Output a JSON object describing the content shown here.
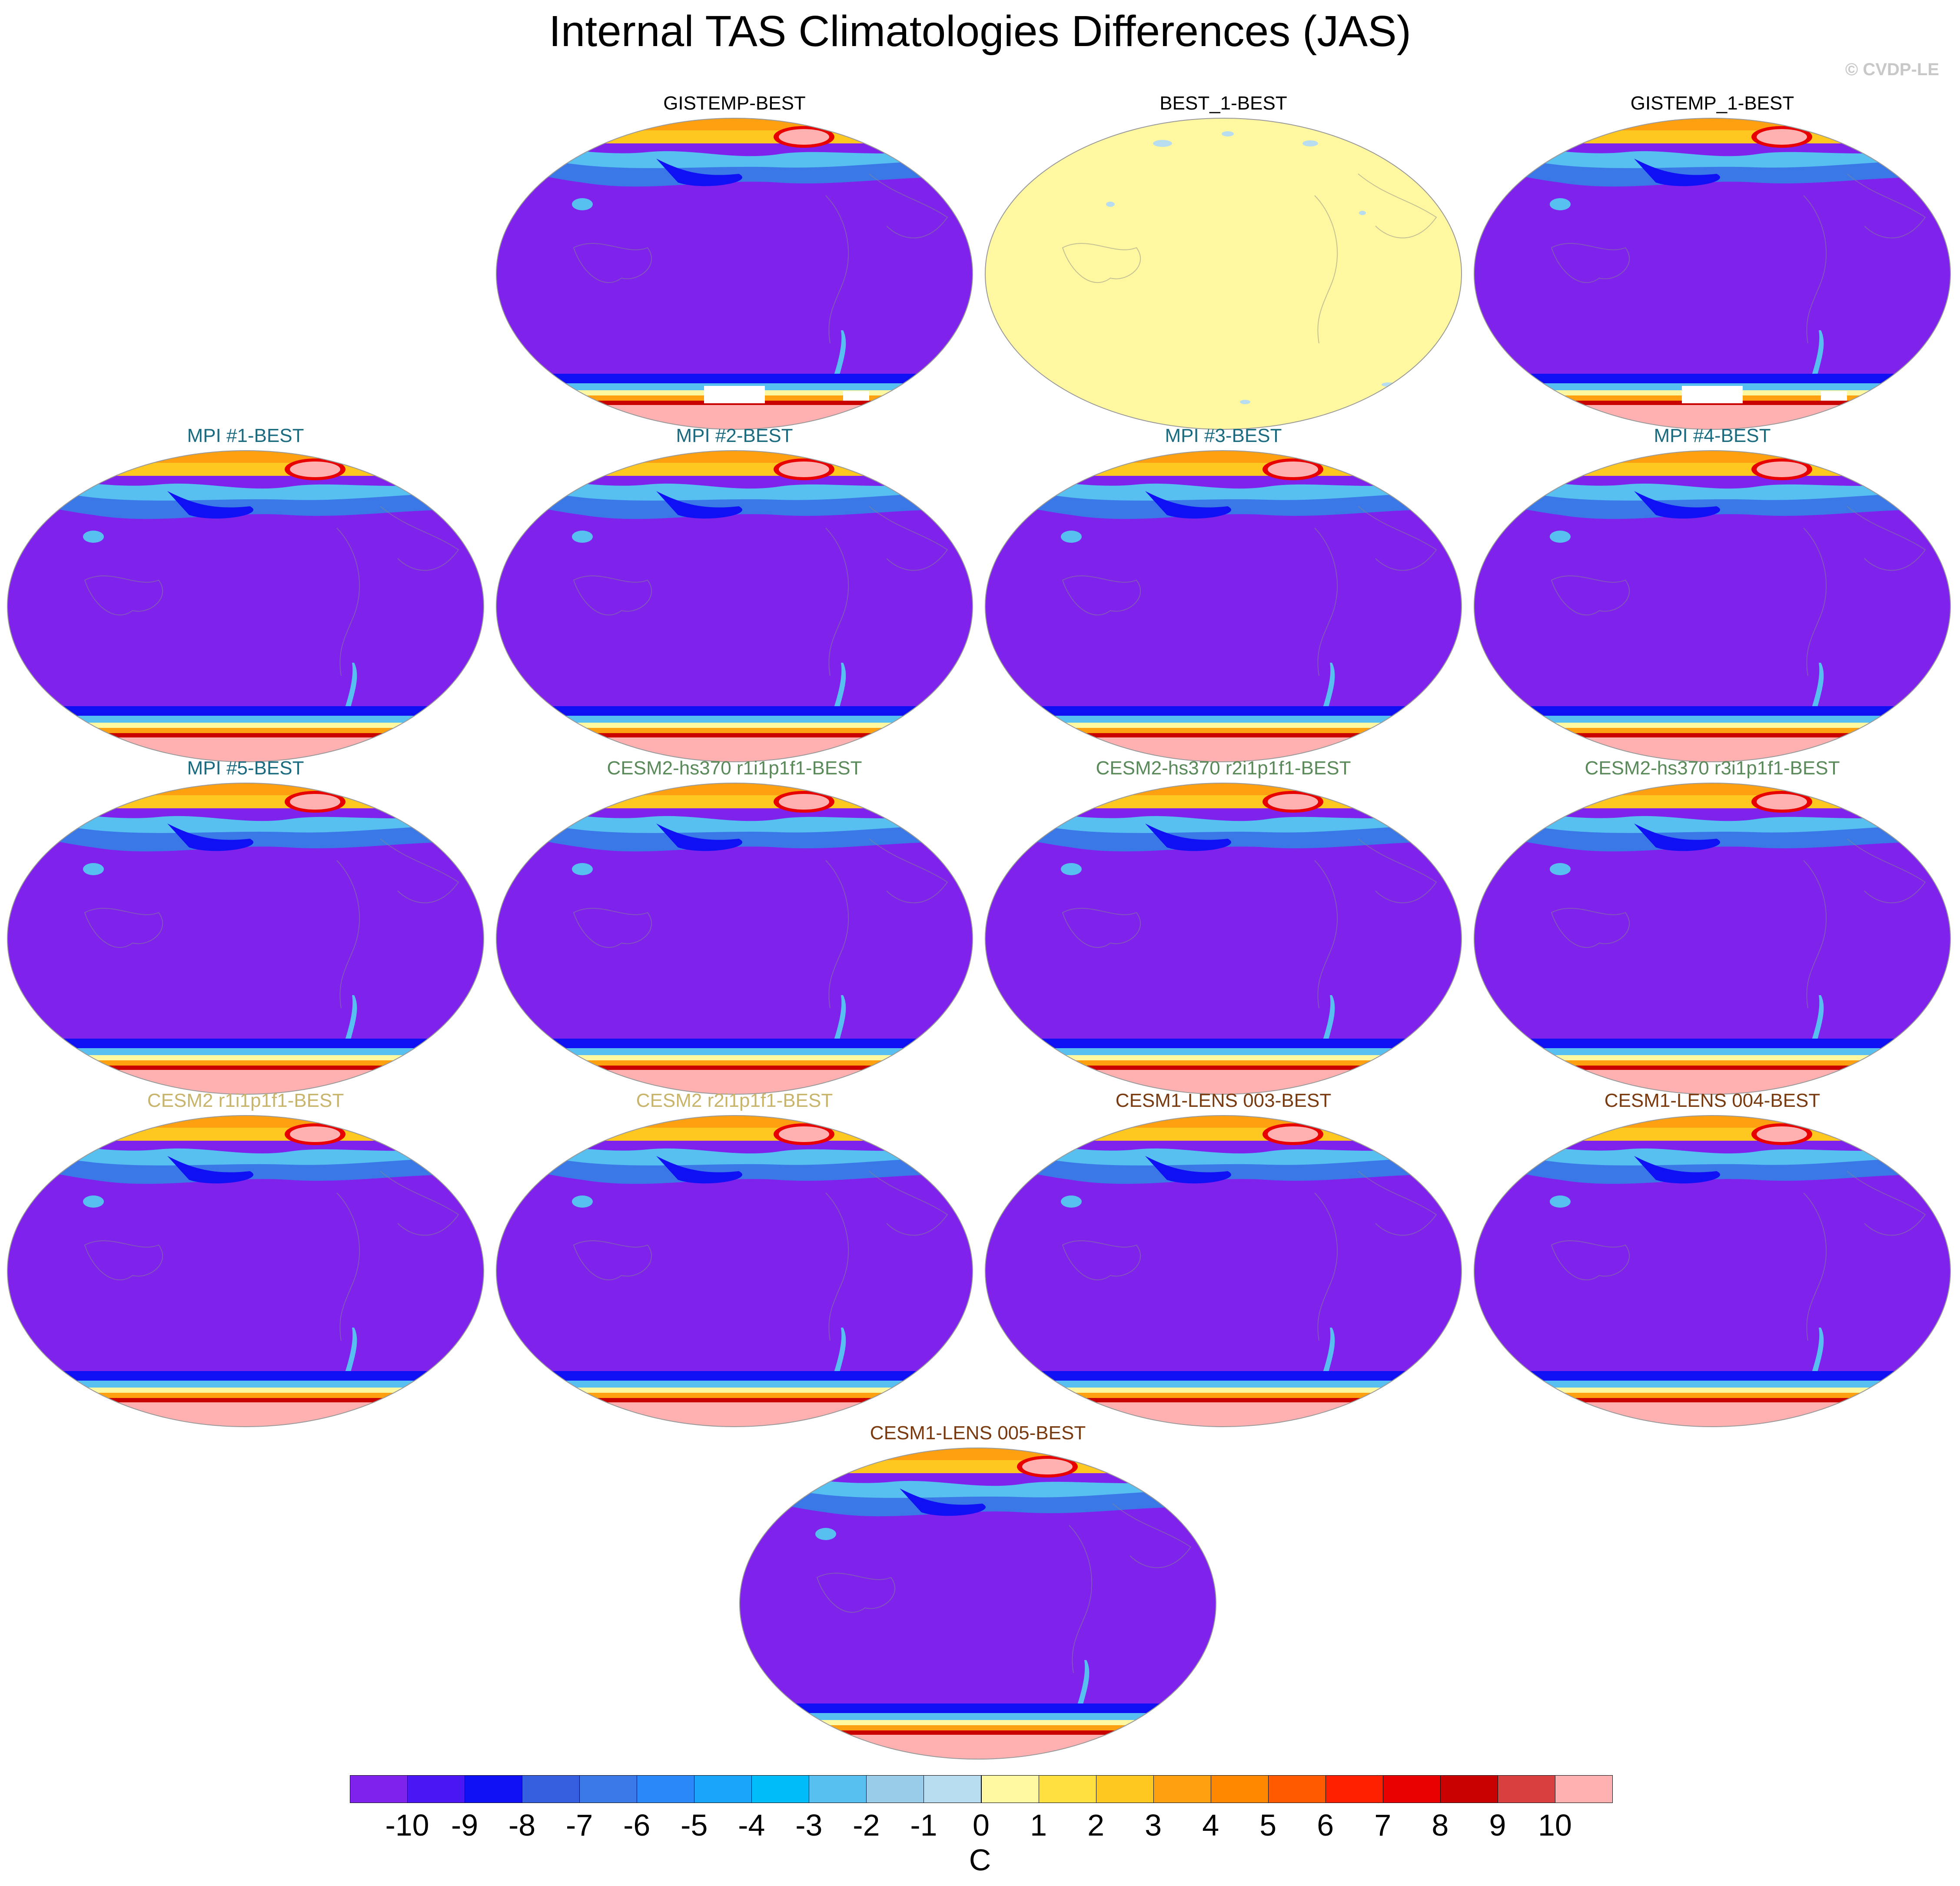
{
  "title": "Internal TAS Climatologies Differences (JAS)",
  "watermark": "© CVDP-LE",
  "panels": [
    {
      "title": "GISTEMP-BEST",
      "title_color": "#000000",
      "pattern": "gradient",
      "gap": true
    },
    {
      "title": "BEST_1-BEST",
      "title_color": "#000000",
      "pattern": "flat",
      "gap": false
    },
    {
      "title": "GISTEMP_1-BEST",
      "title_color": "#000000",
      "pattern": "gradient",
      "gap": true
    },
    {
      "title": "MPI #1-BEST",
      "title_color": "#1a6a80",
      "pattern": "gradient",
      "gap": false
    },
    {
      "title": "MPI #2-BEST",
      "title_color": "#1a6a80",
      "pattern": "gradient",
      "gap": false
    },
    {
      "title": "MPI #3-BEST",
      "title_color": "#1a6a80",
      "pattern": "gradient",
      "gap": false
    },
    {
      "title": "MPI #4-BEST",
      "title_color": "#1a6a80",
      "pattern": "gradient",
      "gap": false
    },
    {
      "title": "MPI #5-BEST",
      "title_color": "#1a6a80",
      "pattern": "gradient",
      "gap": false
    },
    {
      "title": "CESM2-hs370 r1i1p1f1-BEST",
      "title_color": "#5a8a5a",
      "pattern": "gradient",
      "gap": false
    },
    {
      "title": "CESM2-hs370 r2i1p1f1-BEST",
      "title_color": "#5a8a5a",
      "pattern": "gradient",
      "gap": false
    },
    {
      "title": "CESM2-hs370 r3i1p1f1-BEST",
      "title_color": "#5a8a5a",
      "pattern": "gradient",
      "gap": false
    },
    {
      "title": "CESM2 r1i1p1f1-BEST",
      "title_color": "#c8b46a",
      "pattern": "gradient",
      "gap": false
    },
    {
      "title": "CESM2 r2i1p1f1-BEST",
      "title_color": "#c8b46a",
      "pattern": "gradient",
      "gap": false
    },
    {
      "title": "CESM1-LENS 003-BEST",
      "title_color": "#7a3a10",
      "pattern": "gradient",
      "gap": false
    },
    {
      "title": "CESM1-LENS 004-BEST",
      "title_color": "#7a3a10",
      "pattern": "gradient",
      "gap": false
    },
    {
      "title": "CESM1-LENS 005-BEST",
      "title_color": "#7a3a10",
      "pattern": "gradient",
      "gap": false
    }
  ],
  "colorbar": {
    "unit": "C",
    "colors": [
      "#7f22ec",
      "#4a16f4",
      "#1010f4",
      "#3460e0",
      "#3a78e8",
      "#2a88f8",
      "#18a4f8",
      "#00bcf8",
      "#58c0f0",
      "#98cce8",
      "#b8dcf0",
      "#fff8a0",
      "#ffe040",
      "#ffc820",
      "#ffa010",
      "#ff8800",
      "#ff5a00",
      "#ff2000",
      "#e80000",
      "#c80000",
      "#d84040",
      "#ffb0b0"
    ],
    "tick_labels": [
      "-10",
      "-9",
      "-8",
      "-7",
      "-6",
      "-5",
      "-4",
      "-3",
      "-2",
      "-1",
      "0",
      "1",
      "2",
      "3",
      "4",
      "5",
      "6",
      "7",
      "8",
      "9",
      "10"
    ]
  }
}
